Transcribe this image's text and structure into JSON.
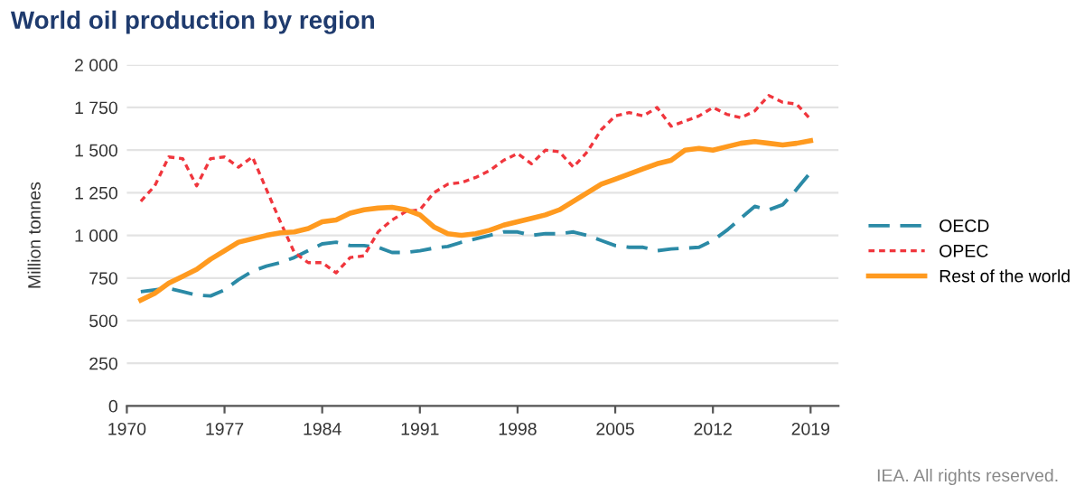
{
  "chart_data": {
    "type": "line",
    "title": "World oil production by region",
    "ylabel": "Million tonnes",
    "x": [
      1971,
      1972,
      1973,
      1974,
      1975,
      1976,
      1977,
      1978,
      1979,
      1980,
      1981,
      1982,
      1983,
      1984,
      1985,
      1986,
      1987,
      1988,
      1989,
      1990,
      1991,
      1992,
      1993,
      1994,
      1995,
      1996,
      1997,
      1998,
      1999,
      2000,
      2001,
      2002,
      2003,
      2004,
      2005,
      2006,
      2007,
      2008,
      2009,
      2010,
      2011,
      2012,
      2013,
      2014,
      2015,
      2016,
      2017,
      2018,
      2019
    ],
    "series": [
      {
        "name": "OECD",
        "color": "#2b8aa6",
        "line_style": "dashed",
        "values": [
          670,
          680,
          690,
          670,
          650,
          645,
          680,
          740,
          790,
          820,
          840,
          870,
          910,
          950,
          960,
          940,
          940,
          930,
          900,
          900,
          910,
          925,
          935,
          960,
          980,
          1000,
          1020,
          1020,
          1000,
          1010,
          1010,
          1020,
          1000,
          970,
          940,
          930,
          930,
          910,
          920,
          925,
          930,
          970,
          1030,
          1100,
          1170,
          1150,
          1180,
          1270,
          1370
        ]
      },
      {
        "name": "OPEC",
        "color": "#f0363d",
        "line_style": "dotted",
        "values": [
          1200,
          1290,
          1460,
          1450,
          1290,
          1450,
          1460,
          1400,
          1460,
          1270,
          1080,
          900,
          840,
          840,
          780,
          870,
          880,
          1020,
          1090,
          1140,
          1150,
          1250,
          1300,
          1310,
          1340,
          1380,
          1440,
          1480,
          1420,
          1500,
          1490,
          1400,
          1490,
          1620,
          1700,
          1720,
          1700,
          1750,
          1640,
          1670,
          1700,
          1750,
          1710,
          1690,
          1730,
          1820,
          1780,
          1770,
          1680
        ]
      },
      {
        "name": "Rest of the world",
        "color": "#ff9a1f",
        "line_style": "solid",
        "values": [
          620,
          660,
          720,
          760,
          800,
          860,
          910,
          960,
          980,
          1000,
          1015,
          1020,
          1040,
          1080,
          1090,
          1130,
          1150,
          1160,
          1165,
          1150,
          1120,
          1050,
          1010,
          1000,
          1010,
          1030,
          1060,
          1080,
          1100,
          1120,
          1150,
          1200,
          1250,
          1300,
          1330,
          1360,
          1390,
          1420,
          1440,
          1500,
          1510,
          1500,
          1520,
          1540,
          1550,
          1540,
          1530,
          1540,
          1555
        ]
      }
    ],
    "xlim": [
      1970,
      2021
    ],
    "xticks": [
      1970,
      1977,
      1984,
      1991,
      1998,
      2005,
      2012,
      2019
    ],
    "ylim": [
      0,
      2000
    ],
    "yticks": [
      {
        "value": 0,
        "label": "0"
      },
      {
        "value": 250,
        "label": "250"
      },
      {
        "value": 500,
        "label": "500"
      },
      {
        "value": 750,
        "label": "750"
      },
      {
        "value": 1000,
        "label": "1 000"
      },
      {
        "value": 1250,
        "label": "1 250"
      },
      {
        "value": 1500,
        "label": "1 500"
      },
      {
        "value": 1750,
        "label": "1 750"
      },
      {
        "value": 2000,
        "label": "2 000"
      }
    ],
    "grid": "y",
    "legend": "right",
    "annotations": [
      "IEA. All rights reserved."
    ]
  }
}
